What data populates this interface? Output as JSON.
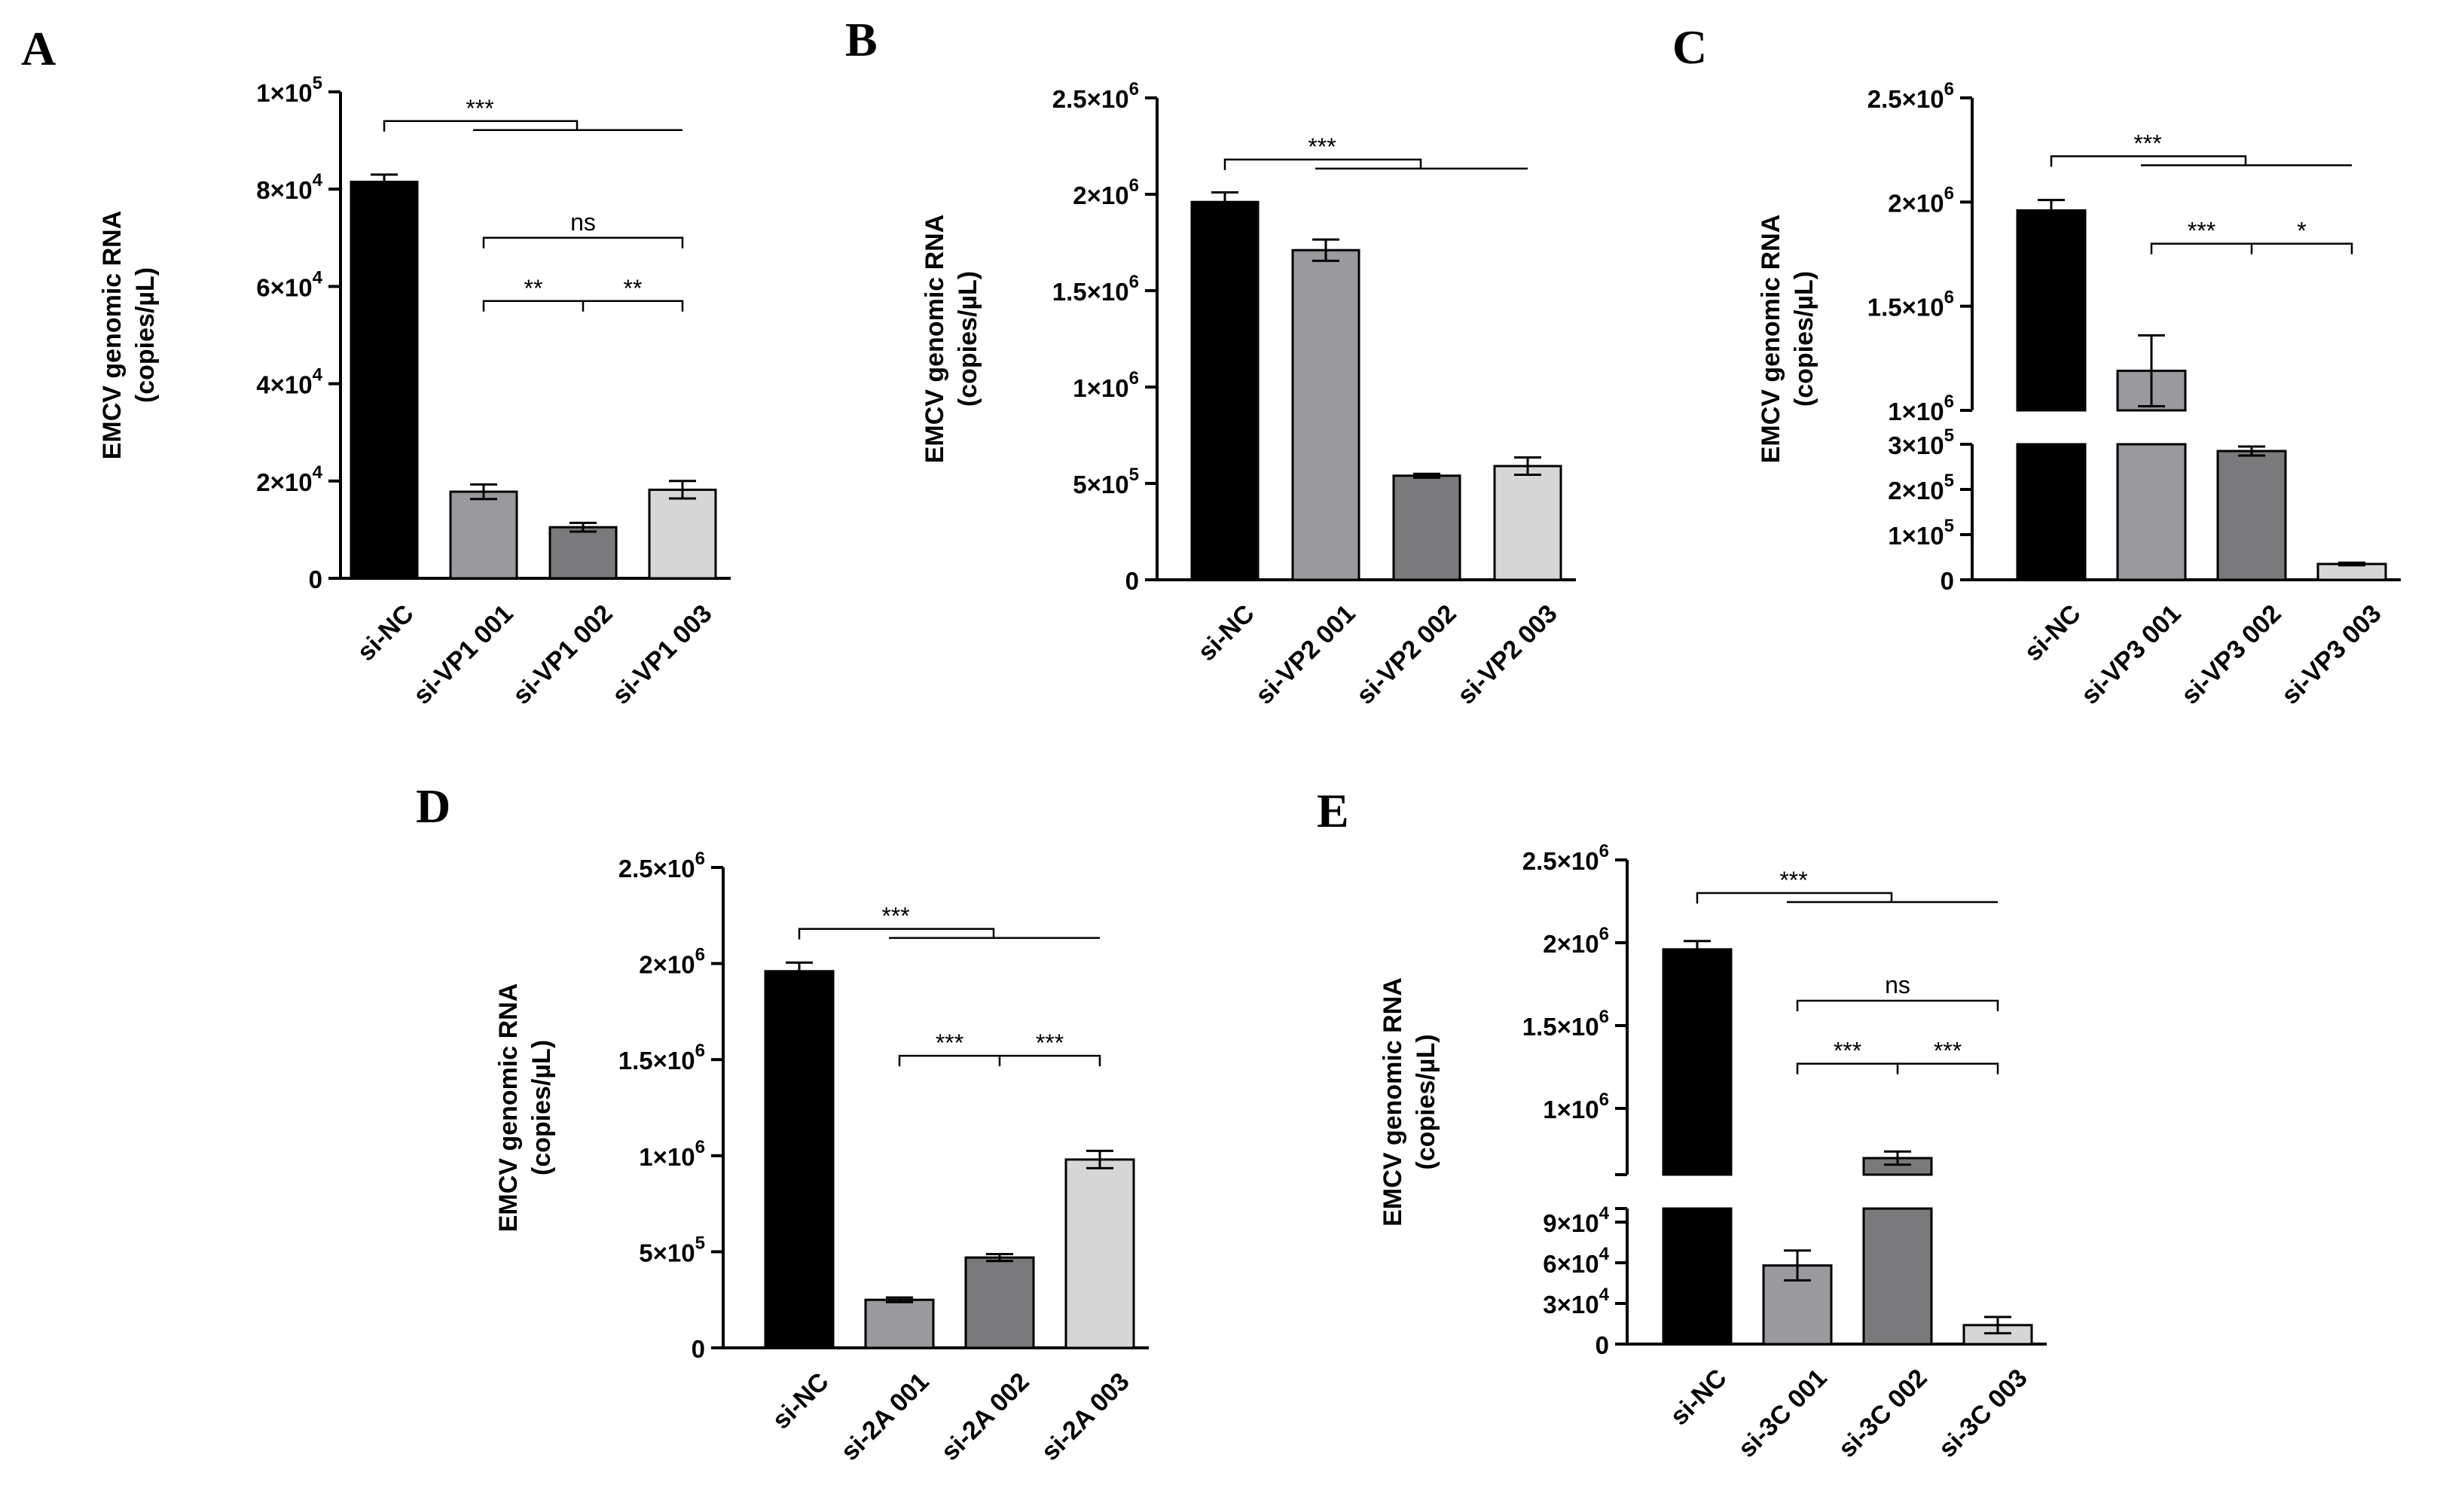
{
  "chart_data": [
    {
      "panel": "A",
      "type": "bar",
      "ylabel": [
        "EMCV genomic RNA",
        "(copies/µL)"
      ],
      "categories": [
        "si-NC",
        "si-VP1 001",
        "si-VP1 002",
        "si-VP1 003"
      ],
      "values": [
        81500,
        17800,
        10500,
        18200
      ],
      "errors": [
        1500,
        1500,
        900,
        1800
      ],
      "colors": [
        "#000000",
        "#9a9a9e",
        "#7a7a7c",
        "#d6d6d6"
      ],
      "ylim": [
        0,
        100000
      ],
      "yticks": [
        0,
        20000,
        40000,
        60000,
        80000,
        100000
      ],
      "ytick_labels": [
        {
          "mant": "0",
          "exp": ""
        },
        {
          "mant": "2×10",
          "exp": "4"
        },
        {
          "mant": "4×10",
          "exp": "4"
        },
        {
          "mant": "6×10",
          "exp": "4"
        },
        {
          "mant": "8×10",
          "exp": "4"
        },
        {
          "mant": "1×10",
          "exp": "5"
        }
      ],
      "significance": [
        {
          "type": "group",
          "from": 0,
          "to": [
            1,
            3
          ],
          "label": "***",
          "level": 94000
        },
        {
          "type": "pair",
          "from": 1,
          "to": 3,
          "label": "ns",
          "level": 70000
        },
        {
          "type": "tri",
          "from": 1,
          "mid": 2,
          "to": 3,
          "labels": [
            "**",
            "**"
          ],
          "level": 57000
        }
      ]
    },
    {
      "panel": "B",
      "type": "bar",
      "ylabel": [
        "EMCV genomic RNA",
        "(copies/µL)"
      ],
      "categories": [
        "si-NC",
        "si-VP2 001",
        "si-VP2 002",
        "si-VP2 003"
      ],
      "values": [
        1960000,
        1710000,
        540000,
        590000
      ],
      "errors": [
        50000,
        55000,
        10000,
        45000
      ],
      "colors": [
        "#000000",
        "#9a9a9e",
        "#7a7a7c",
        "#d6d6d6"
      ],
      "ylim": [
        0,
        2500000
      ],
      "yticks": [
        0,
        500000,
        1000000,
        1500000,
        2000000,
        2500000
      ],
      "ytick_labels": [
        {
          "mant": "0",
          "exp": ""
        },
        {
          "mant": "5×10",
          "exp": "5"
        },
        {
          "mant": "1×10",
          "exp": "6"
        },
        {
          "mant": "1.5×10",
          "exp": "6"
        },
        {
          "mant": "2×10",
          "exp": "6"
        },
        {
          "mant": "2.5×10",
          "exp": "6"
        }
      ],
      "significance": [
        {
          "type": "group",
          "from": 0,
          "to": [
            1,
            3
          ],
          "label": "***",
          "level": 2180000
        }
      ]
    },
    {
      "panel": "C",
      "type": "bar",
      "broken_axis": true,
      "ylabel": [
        "EMCV genomic RNA",
        "(copies/µL)"
      ],
      "categories": [
        "si-NC",
        "si-VP3 001",
        "si-VP3 002",
        "si-VP3 003"
      ],
      "values": [
        1960000,
        1190000,
        285000,
        35000
      ],
      "errors": [
        50000,
        170000,
        10000,
        3000
      ],
      "colors": [
        "#000000",
        "#9a9a9e",
        "#7a7a7c",
        "#d6d6d6"
      ],
      "lower_range": [
        0,
        300000
      ],
      "upper_range": [
        1000000,
        2500000
      ],
      "lower_ticks": [
        0,
        100000,
        200000,
        300000
      ],
      "lower_tick_labels": [
        {
          "mant": "0",
          "exp": ""
        },
        {
          "mant": "1×10",
          "exp": "5"
        },
        {
          "mant": "2×10",
          "exp": "5"
        },
        {
          "mant": "3×10",
          "exp": "5"
        }
      ],
      "upper_ticks": [
        1000000,
        1500000,
        2000000,
        2500000
      ],
      "upper_tick_labels": [
        {
          "mant": "1×10",
          "exp": "6"
        },
        {
          "mant": "1.5×10",
          "exp": "6"
        },
        {
          "mant": "2×10",
          "exp": "6"
        },
        {
          "mant": "2.5×10",
          "exp": "6"
        }
      ],
      "significance": [
        {
          "type": "group",
          "from": 0,
          "to": [
            1,
            3
          ],
          "label": "***",
          "level": 2220000
        },
        {
          "type": "tri",
          "from": 1,
          "mid": 2,
          "to": 3,
          "labels": [
            "***",
            "*"
          ],
          "level": 1800000
        }
      ]
    },
    {
      "panel": "D",
      "type": "bar",
      "ylabel": [
        "EMCV genomic RNA",
        "(copies/µL)"
      ],
      "categories": [
        "si-NC",
        "si-2A 001",
        "si-2A 002",
        "si-2A 003"
      ],
      "values": [
        1960000,
        250000,
        470000,
        980000
      ],
      "errors": [
        45000,
        12000,
        18000,
        45000
      ],
      "colors": [
        "#000000",
        "#9a9a9e",
        "#7a7a7c",
        "#d6d6d6"
      ],
      "ylim": [
        0,
        2500000
      ],
      "yticks": [
        0,
        500000,
        1000000,
        1500000,
        2000000,
        2500000
      ],
      "ytick_labels": [
        {
          "mant": "0",
          "exp": ""
        },
        {
          "mant": "5×10",
          "exp": "5"
        },
        {
          "mant": "1×10",
          "exp": "6"
        },
        {
          "mant": "1.5×10",
          "exp": "6"
        },
        {
          "mant": "2×10",
          "exp": "6"
        },
        {
          "mant": "2.5×10",
          "exp": "6"
        }
      ],
      "significance": [
        {
          "type": "group",
          "from": 0,
          "to": [
            1,
            3
          ],
          "label": "***",
          "level": 2180000
        },
        {
          "type": "tri",
          "from": 1,
          "mid": 2,
          "to": 3,
          "labels": [
            "***",
            "***"
          ],
          "level": 1520000
        }
      ]
    },
    {
      "panel": "E",
      "type": "bar",
      "broken_axis": true,
      "ylabel": [
        "EMCV genomic RNA",
        "(copies/µL)"
      ],
      "categories": [
        "si-NC",
        "si-3C 001",
        "si-3C 002",
        "si-3C 003"
      ],
      "values": [
        1960000,
        58000,
        700000,
        14000
      ],
      "errors": [
        50000,
        11000,
        40000,
        6000
      ],
      "colors": [
        "#000000",
        "#9a9a9e",
        "#7a7a7c",
        "#d6d6d6"
      ],
      "lower_range": [
        0,
        100000
      ],
      "upper_range": [
        600000,
        2500000
      ],
      "lower_ticks": [
        0,
        30000,
        60000,
        90000
      ],
      "lower_tick_labels": [
        {
          "mant": "0",
          "exp": ""
        },
        {
          "mant": "3×10",
          "exp": "4"
        },
        {
          "mant": "6×10",
          "exp": "4"
        },
        {
          "mant": "9×10",
          "exp": "4"
        }
      ],
      "upper_ticks": [
        1000000,
        1500000,
        2000000,
        2500000
      ],
      "upper_tick_labels": [
        {
          "mant": "1×10",
          "exp": "6"
        },
        {
          "mant": "1.5×10",
          "exp": "6"
        },
        {
          "mant": "2×10",
          "exp": "6"
        },
        {
          "mant": "2.5×10",
          "exp": "6"
        }
      ],
      "significance": [
        {
          "type": "group",
          "from": 0,
          "to": [
            1,
            3
          ],
          "label": "***",
          "level": 2300000
        },
        {
          "type": "pair",
          "from": 1,
          "to": 3,
          "label": "ns",
          "level": 1650000
        },
        {
          "type": "tri",
          "from": 1,
          "mid": 2,
          "to": 3,
          "labels": [
            "***",
            "***"
          ],
          "level": 1270000
        }
      ]
    }
  ]
}
